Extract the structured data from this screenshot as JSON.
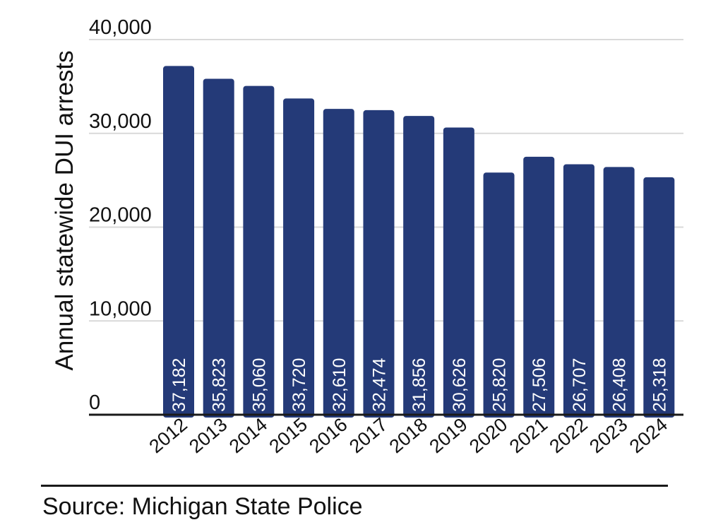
{
  "colors": {
    "bar": "#243a78",
    "bar_label": "#ffffff",
    "grid": "#d9d9d9",
    "axis": "#1a1a1a",
    "text": "#111111"
  },
  "chart_data": {
    "type": "bar",
    "title": "",
    "xlabel": "",
    "ylabel": "Annual statewide DUI arrests",
    "categories": [
      "2012",
      "2013",
      "2014",
      "2015",
      "2016",
      "2017",
      "2018",
      "2019",
      "2020",
      "2021",
      "2022",
      "2023",
      "2024"
    ],
    "values": [
      37182,
      35823,
      35060,
      33720,
      32610,
      32474,
      31856,
      30626,
      25820,
      27506,
      26707,
      26408,
      25318
    ],
    "value_labels": [
      "37,182",
      "35,823",
      "35,060",
      "33,720",
      "32,610",
      "32,474",
      "31,856",
      "30,626",
      "25,820",
      "27,506",
      "26,707",
      "26,408",
      "25,318"
    ],
    "ylim": [
      0,
      40000
    ],
    "yticks": [
      0,
      10000,
      20000,
      30000,
      40000
    ],
    "ytick_labels": [
      "0",
      "10,000",
      "20,000",
      "30,000",
      "40,000"
    ],
    "grid": true,
    "legend": "none"
  },
  "source": "Source: Michigan State Police"
}
